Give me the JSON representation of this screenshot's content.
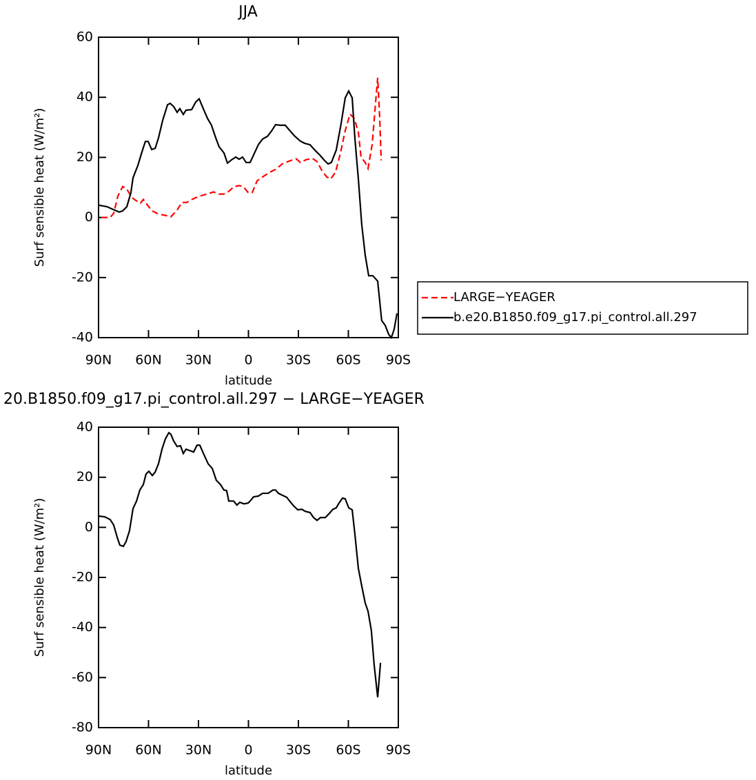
{
  "chart_data": [
    {
      "type": "line",
      "title": "JJA",
      "xlabel": "latitude",
      "ylabel": "Surf sensible heat (W/m²)",
      "xlim": [
        90,
        -90
      ],
      "ylim": [
        -40,
        60
      ],
      "xticks": [
        {
          "value": 90,
          "label": "90N"
        },
        {
          "value": 60,
          "label": "60N"
        },
        {
          "value": 30,
          "label": "30N"
        },
        0,
        {
          "value": -30,
          "label": "30S"
        },
        {
          "value": -60,
          "label": "60S"
        },
        {
          "value": -90,
          "label": "90S"
        }
      ],
      "yticks": [
        -40,
        -20,
        0,
        20,
        40,
        60
      ],
      "legend": "right",
      "series": [
        {
          "name": "LARGE−YEAGER",
          "color": "#ff0000",
          "dash": true,
          "x": [
            88.3,
            83,
            80.9,
            78.4,
            75.5,
            73,
            70.1,
            67.2,
            64.8,
            63.1,
            61,
            58.1,
            54,
            49.9,
            46.6,
            42.8,
            39.9,
            37,
            33.3,
            29.2,
            25,
            20.9,
            18,
            14.7,
            11.8,
            8.5,
            5.6,
            3.1,
            0.2,
            -2.3,
            -5.2,
            -9.3,
            -13,
            -16.3,
            -20.5,
            -24.6,
            -28.7,
            -31.2,
            -34.5,
            -38.3,
            -41.2,
            -44.1,
            -47,
            -49.4,
            -52.3,
            -55.2,
            -58.1,
            -61,
            -63.5,
            -66,
            -67.6,
            -70.1,
            -71.8,
            -74.3,
            -76.3,
            -77.6,
            -78.8,
            -79.7
          ],
          "values": [
            0,
            0,
            1.4,
            7.1,
            10.3,
            9.4,
            6.7,
            5.5,
            4.8,
            6,
            4.4,
            2.3,
            1.1,
            0.7,
            0.2,
            2.5,
            5,
            5,
            6.2,
            7.1,
            7.8,
            8.5,
            7.8,
            7.8,
            8.7,
            10.3,
            10.6,
            10.3,
            8.3,
            8.3,
            12.2,
            13.8,
            15.1,
            16,
            17.9,
            18.8,
            19.5,
            18.3,
            19.2,
            19.7,
            18.6,
            15.6,
            13.5,
            12.8,
            15.1,
            21.3,
            28.9,
            34.4,
            33,
            28.4,
            20.1,
            18.3,
            16.3,
            24.3,
            38,
            46.5,
            33.5,
            19
          ]
        },
        {
          "name": "b.e20.B1850.f09_g17.pi_control.all.297",
          "color": "#000000",
          "dash": false,
          "x": [
            90,
            85,
            80.5,
            77.6,
            75.5,
            73,
            70.6,
            69.3,
            66.4,
            63.9,
            61.9,
            60.2,
            58.1,
            56,
            54,
            51.5,
            48.6,
            47,
            44.9,
            42.8,
            41.2,
            39.1,
            37.5,
            34.1,
            31.7,
            29.6,
            27.1,
            24.6,
            22.2,
            19.7,
            17.6,
            14.7,
            12.6,
            10.1,
            7.6,
            5.6,
            3.5,
            1.4,
            -1,
            -3.1,
            -6,
            -8.5,
            -11.4,
            -13.9,
            -16.3,
            -18.8,
            -22.1,
            -25,
            -27.9,
            -31.2,
            -33.7,
            -37,
            -39.9,
            -42.8,
            -45.3,
            -47.8,
            -49.8,
            -52.7,
            -55.6,
            -58.1,
            -60.2,
            -62.3,
            -63.9,
            -66,
            -68,
            -70.1,
            -72.2,
            -74.7,
            -77.6,
            -80,
            -82.1,
            -84.2,
            -85.8,
            -87.5,
            -89.2
          ],
          "values": [
            4.1,
            3.6,
            2.5,
            1.8,
            2.2,
            3.6,
            8.2,
            13.2,
            17.3,
            21.9,
            25.3,
            25.3,
            22.6,
            23,
            26.5,
            32.3,
            37.5,
            38,
            36.9,
            35,
            36.2,
            34.3,
            35.7,
            35.9,
            38.4,
            39.5,
            36.2,
            33,
            30.7,
            26.6,
            23.5,
            21.5,
            18.1,
            19.2,
            20.1,
            19.4,
            20.1,
            18.3,
            18.3,
            20.8,
            24.3,
            26.1,
            27,
            28.8,
            30.9,
            30.7,
            30.7,
            28.8,
            27,
            25.4,
            24.7,
            24.2,
            22.4,
            20.8,
            19.2,
            17.8,
            18.3,
            22.4,
            31.1,
            39.8,
            42.1,
            39.8,
            26.5,
            12.8,
            -2.2,
            -12.5,
            -19.4,
            -19.4,
            -21.2,
            -34.3,
            -35.9,
            -38.9,
            -40,
            -37.2,
            -31.9
          ]
        }
      ]
    },
    {
      "type": "line",
      "title": "20.B1850.f09_g17.pi_control.all.297 − LARGE−YEAGER",
      "xlabel": "latitude",
      "ylabel": "Surf sensible heat (W/m²)",
      "xlim": [
        90,
        -90
      ],
      "ylim": [
        -80,
        40
      ],
      "xticks": [
        {
          "value": 90,
          "label": "90N"
        },
        {
          "value": 60,
          "label": "60N"
        },
        {
          "value": 30,
          "label": "30N"
        },
        0,
        {
          "value": -30,
          "label": "30S"
        },
        {
          "value": -60,
          "label": "60S"
        },
        {
          "value": -90,
          "label": "90S"
        }
      ],
      "yticks": [
        -80,
        -60,
        -40,
        -20,
        0,
        20,
        40
      ],
      "series": [
        {
          "color": "#000000",
          "dash": false,
          "x": [
            90,
            86.3,
            83,
            80.9,
            78.8,
            77.2,
            75.1,
            73.5,
            71.4,
            69.3,
            67.2,
            65.2,
            63.1,
            61.5,
            59.8,
            57.7,
            56,
            54,
            51.9,
            49.9,
            47.8,
            46.6,
            44.9,
            42.8,
            40.8,
            39.1,
            37.5,
            35,
            32.9,
            30.9,
            29.2,
            26.7,
            24.2,
            21.7,
            19.3,
            16.8,
            14.7,
            13.1,
            11.8,
            8.9,
            6.9,
            5.2,
            2.7,
            0.2,
            -1.4,
            -3.1,
            -6,
            -8.5,
            -11.8,
            -14.7,
            -16.3,
            -18,
            -20.5,
            -23,
            -25,
            -27.1,
            -29.6,
            -32.1,
            -34.1,
            -37,
            -39.1,
            -41.2,
            -43.2,
            -46.1,
            -48.2,
            -50.7,
            -52.7,
            -54.4,
            -56.5,
            -58.1,
            -60.2,
            -62.3,
            -63.9,
            -66,
            -68,
            -70.1,
            -71.8,
            -73.8,
            -75.5,
            -77.6,
            -79.3
          ],
          "values": [
            4.5,
            4.2,
            3.1,
            0.9,
            -4,
            -7.1,
            -7.6,
            -5.7,
            -1.3,
            7.5,
            10.5,
            14.9,
            17.1,
            21.3,
            22.4,
            20.7,
            22.1,
            25.4,
            31.2,
            35.3,
            37.8,
            37.2,
            34.5,
            32.3,
            32.6,
            29.5,
            31.2,
            30.6,
            30.1,
            32.8,
            32.8,
            29,
            25.4,
            23.5,
            18.8,
            17.1,
            14.9,
            14.7,
            10.5,
            10.5,
            8.9,
            10,
            9.4,
            9.7,
            10.8,
            12.2,
            12.5,
            13.6,
            13.6,
            14.9,
            14.9,
            13.6,
            12.8,
            12,
            10.3,
            8.6,
            7,
            7.2,
            6.4,
            5.9,
            3.9,
            2.8,
            3.9,
            3.9,
            5.3,
            7.2,
            7.8,
            9.7,
            11.7,
            11.4,
            7.8,
            7,
            -2.6,
            -16.4,
            -23.3,
            -30.2,
            -33.5,
            -41.2,
            -55,
            -67.9,
            -54.1
          ]
        }
      ]
    }
  ]
}
